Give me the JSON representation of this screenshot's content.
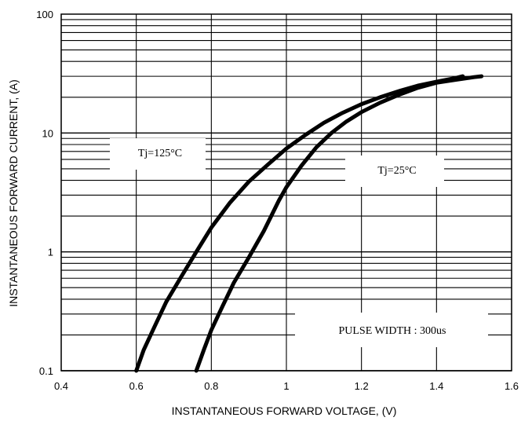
{
  "chart_data": {
    "type": "line",
    "xlabel": "INSTANTANEOUS FORWARD VOLTAGE, (V)",
    "ylabel": "INSTANTANEOUS FORWARD CURRENT, (A)",
    "xlim": [
      0.4,
      1.6
    ],
    "ylim": [
      0.1,
      100
    ],
    "y_scale": "log",
    "grid": true,
    "x_ticks": [
      "0.4",
      "0.6",
      "0.8",
      "1",
      "1.2",
      "1.4",
      "1.6"
    ],
    "y_ticks": [
      "0.1",
      "1",
      "10",
      "100"
    ],
    "series": [
      {
        "name": "Tj=125°C",
        "x": [
          0.6,
          0.62,
          0.65,
          0.68,
          0.72,
          0.76,
          0.8,
          0.85,
          0.9,
          0.95,
          1.0,
          1.05,
          1.1,
          1.15,
          1.2,
          1.25,
          1.3,
          1.35,
          1.4,
          1.45,
          1.47
        ],
        "y": [
          0.1,
          0.15,
          0.24,
          0.38,
          0.62,
          1.0,
          1.6,
          2.6,
          3.9,
          5.4,
          7.4,
          9.6,
          12.2,
          14.8,
          17.5,
          20.0,
          22.5,
          25.0,
          27.0,
          29.0,
          30.0
        ]
      },
      {
        "name": "Tj=25°C",
        "x": [
          0.76,
          0.78,
          0.8,
          0.83,
          0.86,
          0.9,
          0.94,
          0.98,
          1.0,
          1.04,
          1.08,
          1.12,
          1.16,
          1.2,
          1.25,
          1.3,
          1.35,
          1.4,
          1.45,
          1.5,
          1.52
        ],
        "y": [
          0.1,
          0.15,
          0.22,
          0.35,
          0.55,
          0.9,
          1.5,
          2.7,
          3.5,
          5.3,
          7.6,
          10.0,
          12.5,
          15.0,
          18.0,
          21.0,
          24.0,
          26.5,
          28.0,
          29.5,
          30.0
        ]
      }
    ],
    "annotations": [
      "Tj=125°C",
      "Tj=25°C",
      "PULSE WIDTH : 300us"
    ]
  }
}
